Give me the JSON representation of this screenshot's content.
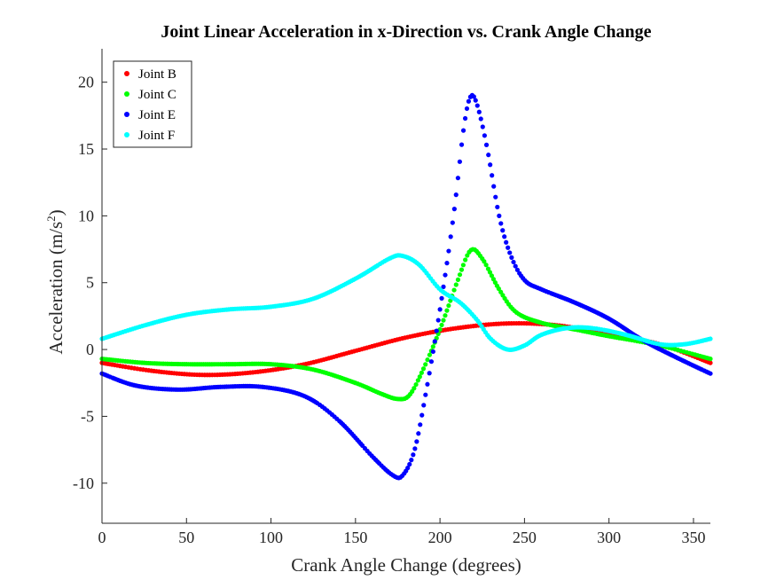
{
  "chart_data": {
    "type": "scatter",
    "title": "Joint Linear Acceleration in x-Direction vs. Crank Angle Change",
    "xlabel": "Crank Angle Change (degrees)",
    "ylabel": "Acceleration (m/s",
    "ylabel_sup": "2",
    "ylabel_close": ")",
    "xlim": [
      0,
      360
    ],
    "ylim": [
      -13,
      22.5
    ],
    "xticks": [
      0,
      50,
      100,
      150,
      200,
      250,
      300,
      350
    ],
    "yticks": [
      -10,
      -5,
      0,
      5,
      10,
      15,
      20
    ],
    "grid": false,
    "legend_position": "top-left",
    "series": [
      {
        "name": "Joint B",
        "color": "#ff0000",
        "points": [
          [
            0,
            -1.0
          ],
          [
            30,
            -1.6
          ],
          [
            60,
            -1.9
          ],
          [
            90,
            -1.7
          ],
          [
            120,
            -1.1
          ],
          [
            150,
            -0.1
          ],
          [
            180,
            0.9
          ],
          [
            210,
            1.6
          ],
          [
            240,
            1.95
          ],
          [
            270,
            1.8
          ],
          [
            300,
            1.1
          ],
          [
            330,
            0.4
          ],
          [
            360,
            -1.0
          ]
        ]
      },
      {
        "name": "Joint C",
        "color": "#00ff00",
        "points": [
          [
            0,
            -0.7
          ],
          [
            25,
            -1.0
          ],
          [
            50,
            -1.1
          ],
          [
            75,
            -1.1
          ],
          [
            100,
            -1.1
          ],
          [
            125,
            -1.5
          ],
          [
            150,
            -2.5
          ],
          [
            165,
            -3.3
          ],
          [
            175,
            -3.7
          ],
          [
            182,
            -3.4
          ],
          [
            190,
            -1.5
          ],
          [
            200,
            1.5
          ],
          [
            210,
            5.0
          ],
          [
            218,
            7.4
          ],
          [
            225,
            6.8
          ],
          [
            235,
            4.5
          ],
          [
            245,
            2.8
          ],
          [
            260,
            2.0
          ],
          [
            280,
            1.5
          ],
          [
            300,
            1.0
          ],
          [
            330,
            0.3
          ],
          [
            360,
            -0.7
          ]
        ]
      },
      {
        "name": "Joint E",
        "color": "#0000ff",
        "points": [
          [
            0,
            -1.8
          ],
          [
            20,
            -2.7
          ],
          [
            45,
            -3.0
          ],
          [
            70,
            -2.8
          ],
          [
            95,
            -2.8
          ],
          [
            120,
            -3.5
          ],
          [
            140,
            -5.3
          ],
          [
            160,
            -8.0
          ],
          [
            172,
            -9.4
          ],
          [
            178,
            -9.4
          ],
          [
            185,
            -7.5
          ],
          [
            192,
            -3.0
          ],
          [
            200,
            3.0
          ],
          [
            208,
            10.0
          ],
          [
            214,
            16.5
          ],
          [
            218,
            18.9
          ],
          [
            222,
            18.3
          ],
          [
            228,
            15.0
          ],
          [
            235,
            10.0
          ],
          [
            242,
            7.0
          ],
          [
            250,
            5.2
          ],
          [
            260,
            4.5
          ],
          [
            280,
            3.5
          ],
          [
            300,
            2.3
          ],
          [
            320,
            0.7
          ],
          [
            340,
            -0.6
          ],
          [
            360,
            -1.8
          ]
        ]
      },
      {
        "name": "Joint F",
        "color": "#00ffff",
        "points": [
          [
            0,
            0.8
          ],
          [
            25,
            1.8
          ],
          [
            50,
            2.6
          ],
          [
            75,
            3.0
          ],
          [
            100,
            3.2
          ],
          [
            125,
            3.8
          ],
          [
            150,
            5.3
          ],
          [
            170,
            6.8
          ],
          [
            178,
            7.0
          ],
          [
            188,
            6.3
          ],
          [
            200,
            4.5
          ],
          [
            212,
            3.5
          ],
          [
            222,
            2.2
          ],
          [
            230,
            0.8
          ],
          [
            240,
            0.0
          ],
          [
            250,
            0.3
          ],
          [
            260,
            1.1
          ],
          [
            275,
            1.6
          ],
          [
            290,
            1.6
          ],
          [
            310,
            1.1
          ],
          [
            330,
            0.4
          ],
          [
            345,
            0.4
          ],
          [
            360,
            0.8
          ]
        ]
      }
    ]
  }
}
